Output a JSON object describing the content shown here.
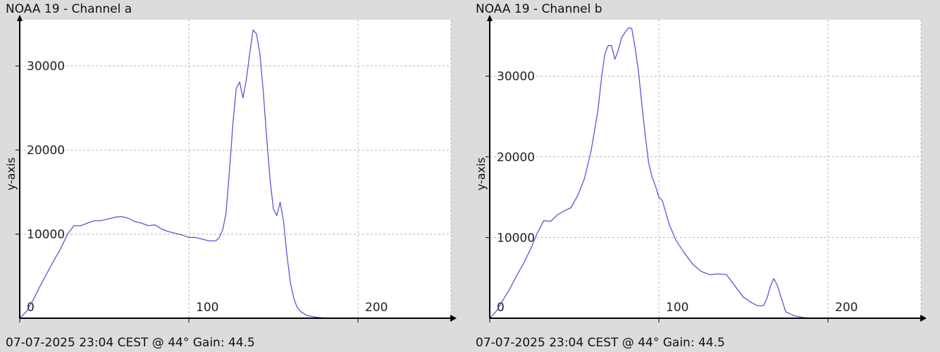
{
  "colors": {
    "background": "#dcdcdc",
    "plot_bg": "#ffffff",
    "line": "#5858d6",
    "grid": "#b8b8b8",
    "axis": "#000000"
  },
  "chart_data": [
    {
      "type": "line",
      "title": "NOAA 19 - Channel a",
      "ylabel": "y-axis",
      "footer": "07-07-2025 23:04 CEST @ 44° Gain: 44.5",
      "xlim": [
        0,
        255
      ],
      "ylim": [
        0,
        35500
      ],
      "x_ticks": [
        0,
        100,
        200
      ],
      "y_ticks": [
        10000,
        20000,
        30000
      ],
      "grid": true,
      "series": [
        {
          "x": [
            0,
            4,
            8,
            12,
            16,
            20,
            24,
            28,
            32,
            36,
            40,
            44,
            48,
            52,
            56,
            60,
            64,
            68,
            72,
            76,
            80,
            84,
            88,
            92,
            96,
            100,
            104,
            108,
            112,
            116,
            118,
            120,
            122,
            124,
            126,
            128,
            130,
            132,
            134,
            136,
            138,
            140,
            142,
            144,
            146,
            148,
            150,
            152,
            154,
            156,
            158,
            160,
            162,
            164,
            166,
            170,
            176,
            180,
            185
          ],
          "y": [
            0,
            800,
            2200,
            3800,
            5300,
            6800,
            8200,
            9900,
            11000,
            11000,
            11300,
            11600,
            11600,
            11800,
            12000,
            12100,
            11900,
            11500,
            11300,
            11000,
            11100,
            10600,
            10300,
            10100,
            9900,
            9600,
            9600,
            9400,
            9200,
            9200,
            9600,
            10500,
            12500,
            17500,
            23000,
            27300,
            28100,
            26200,
            28400,
            31500,
            34300,
            33800,
            31500,
            27000,
            21500,
            16500,
            13000,
            12200,
            13800,
            11500,
            7500,
            4300,
            2400,
            1300,
            800,
            300,
            100,
            30,
            0
          ]
        }
      ]
    },
    {
      "type": "line",
      "title": "NOAA 19 - Channel b",
      "ylabel": "y-axis",
      "footer": "07-07-2025 23:04 CEST @ 44° Gain: 44.5",
      "xlim": [
        0,
        255
      ],
      "ylim": [
        0,
        37000
      ],
      "x_ticks": [
        0,
        100,
        200
      ],
      "y_ticks": [
        10000,
        20000,
        30000
      ],
      "grid": true,
      "series": [
        {
          "x": [
            0,
            4,
            8,
            12,
            16,
            20,
            24,
            28,
            32,
            36,
            40,
            44,
            48,
            52,
            56,
            60,
            64,
            66,
            68,
            70,
            72,
            74,
            76,
            78,
            80,
            82,
            84,
            86,
            88,
            90,
            92,
            94,
            96,
            98,
            100,
            102,
            104,
            106,
            110,
            115,
            120,
            125,
            130,
            135,
            140,
            145,
            150,
            155,
            158,
            160,
            162,
            164,
            166,
            168,
            170,
            175,
            180,
            185,
            190
          ],
          "y": [
            0,
            900,
            2300,
            3700,
            5300,
            6800,
            8500,
            10500,
            12100,
            12000,
            12800,
            13300,
            13700,
            15200,
            17300,
            20800,
            25800,
            29600,
            32700,
            33800,
            33800,
            32100,
            33200,
            34800,
            35400,
            36000,
            35900,
            33500,
            30500,
            26400,
            22600,
            19200,
            17500,
            16400,
            15000,
            14600,
            13200,
            11700,
            9700,
            8100,
            6700,
            5800,
            5400,
            5500,
            5400,
            4000,
            2600,
            1900,
            1600,
            1500,
            1600,
            2500,
            4000,
            4900,
            4100,
            800,
            300,
            100,
            0
          ]
        }
      ]
    }
  ]
}
